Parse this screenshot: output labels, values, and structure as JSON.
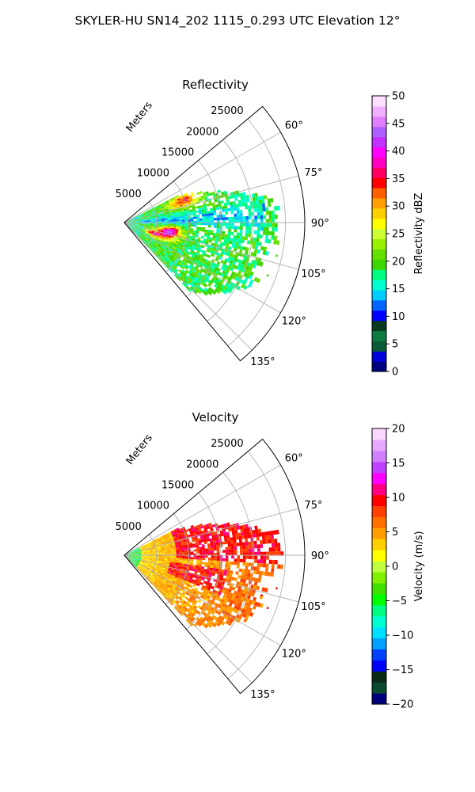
{
  "figure": {
    "suptitle": "SKYLER-HU  SN14_202  1115_0.293 UTC Elevation 12°"
  },
  "chart_data": [
    {
      "type": "heatmap",
      "projection": "polar-sector",
      "title": "Reflectivity",
      "radial_axis_label": "Meters",
      "radial_ticks": [
        5000,
        10000,
        15000,
        20000,
        25000
      ],
      "radial_range": [
        0,
        28000
      ],
      "azimuth_ticks": [
        "60°",
        "75°",
        "90°",
        "105°",
        "120°",
        "135°"
      ],
      "azimuth_range": [
        50,
        140
      ],
      "grid": true,
      "colorbar": {
        "label": "Reflectivity dBZ",
        "range": [
          0,
          50
        ],
        "ticks": [
          "0",
          "5",
          "10",
          "15",
          "20",
          "25",
          "30",
          "35",
          "40",
          "45",
          "50"
        ],
        "colors": [
          "#00007f",
          "#0000d8",
          "#0b5a38",
          "#0d7a40",
          "#0a3a20",
          "#0000ff",
          "#0066ff",
          "#00ccff",
          "#00ffd0",
          "#00ff80",
          "#3cd800",
          "#66e000",
          "#99f000",
          "#ccff33",
          "#ffff00",
          "#ffd000",
          "#ffa000",
          "#ff6000",
          "#ff0000",
          "#ff0060",
          "#ff00c0",
          "#ff00ff",
          "#c030ff",
          "#b060ff",
          "#e080ff",
          "#f0b0ff",
          "#fde0ff"
        ]
      }
    },
    {
      "type": "heatmap",
      "projection": "polar-sector",
      "title": "Velocity",
      "radial_axis_label": "Meters",
      "radial_ticks": [
        5000,
        10000,
        15000,
        20000,
        25000
      ],
      "radial_range": [
        0,
        28000
      ],
      "azimuth_ticks": [
        "60°",
        "75°",
        "90°",
        "105°",
        "120°",
        "135°"
      ],
      "azimuth_range": [
        50,
        140
      ],
      "grid": true,
      "colorbar": {
        "label": "Velocity (m/s)",
        "range": [
          -20,
          20
        ],
        "ticks": [
          "−20",
          "−15",
          "−10",
          "−5",
          "0",
          "5",
          "10",
          "15",
          "20"
        ],
        "colors": [
          "#00007f",
          "#0b4a30",
          "#0a2a18",
          "#0000ff",
          "#0040ff",
          "#00a0ff",
          "#00e0ff",
          "#00ffd0",
          "#00ff80",
          "#00ff00",
          "#40e000",
          "#80f000",
          "#c0ff40",
          "#ffff00",
          "#ffd000",
          "#ffa000",
          "#ff7000",
          "#ff4000",
          "#ff0000",
          "#ff0080",
          "#ff00ff",
          "#c040ff",
          "#d080ff",
          "#e8a8ff",
          "#fbd8ff"
        ]
      }
    }
  ]
}
